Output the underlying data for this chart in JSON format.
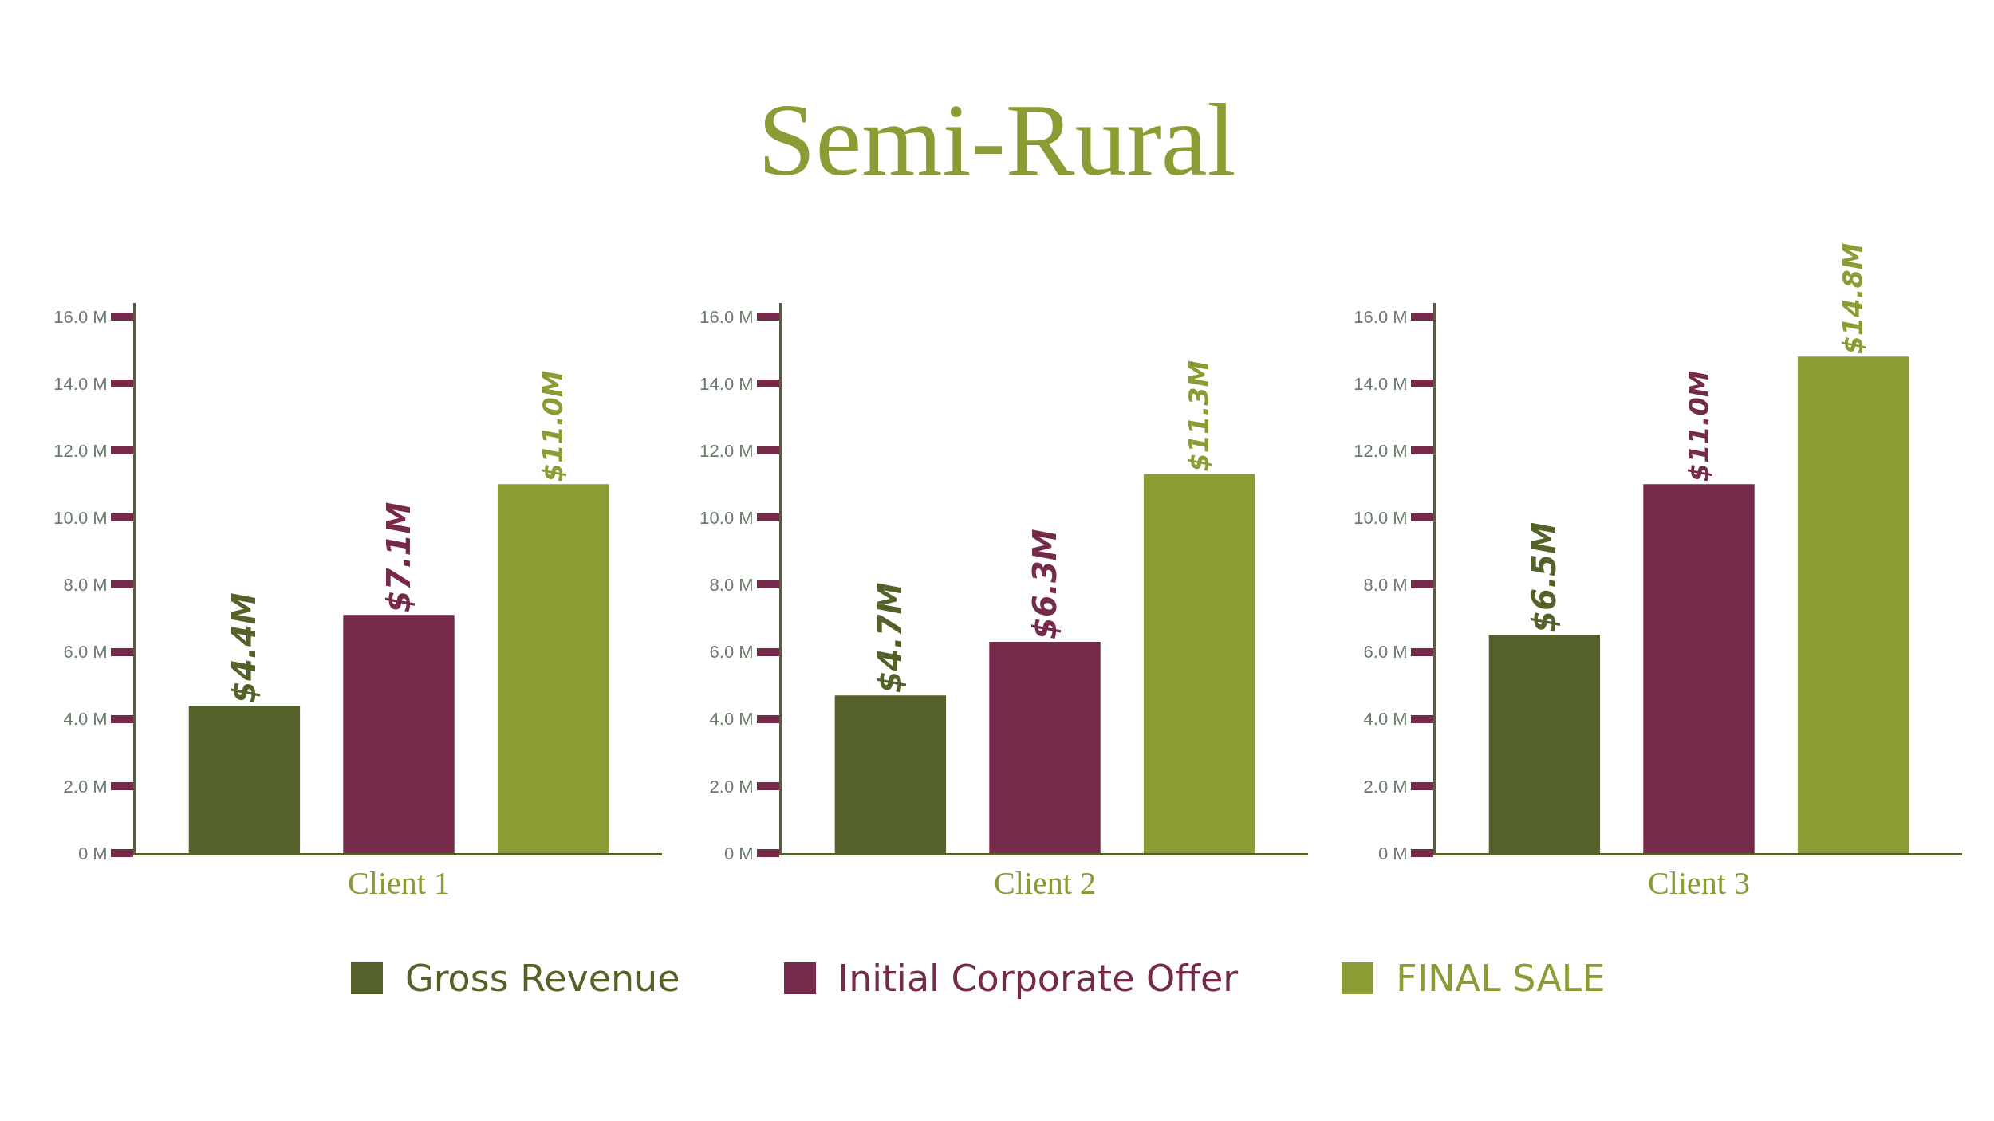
{
  "chart_data": [
    {
      "type": "bar",
      "legend": "bottom",
      "categories": [
        "Client 1"
      ],
      "ylim": [
        0,
        16.4
      ],
      "yticks": [
        {
          "value": 0,
          "label": "0 M"
        },
        {
          "value": 2,
          "label": "2.0 M"
        },
        {
          "value": 4,
          "label": "4.0 M"
        },
        {
          "value": 6,
          "label": "6.0 M"
        },
        {
          "value": 8,
          "label": "8.0 M"
        },
        {
          "value": 10,
          "label": "10.0 M"
        },
        {
          "value": 12,
          "label": "12.0 M"
        },
        {
          "value": 14,
          "label": "14.0 M"
        },
        {
          "value": 16,
          "label": "16.0 M"
        }
      ],
      "series": [
        {
          "name": "Gross Revenue",
          "color": "#54622a",
          "values": [
            4.4
          ],
          "value_labels": [
            "$4.4M"
          ]
        },
        {
          "name": "Initial Corporate Offer",
          "color": "#752a4a",
          "values": [
            7.1
          ],
          "value_labels": [
            "$7.1M"
          ]
        },
        {
          "name": "FINAL SALE",
          "color": "#8a9c33",
          "values": [
            11.0
          ],
          "value_labels": [
            "$11.0M"
          ]
        }
      ]
    },
    {
      "type": "bar",
      "title": "Semi-Rural",
      "categories": [
        "Client 2"
      ],
      "ylim": [
        0,
        16.4
      ],
      "yticks": [
        {
          "value": 0,
          "label": "0 M"
        },
        {
          "value": 2,
          "label": "2.0 M"
        },
        {
          "value": 4,
          "label": "4.0 M"
        },
        {
          "value": 6,
          "label": "6.0 M"
        },
        {
          "value": 8,
          "label": "8.0 M"
        },
        {
          "value": 10,
          "label": "10.0 M"
        },
        {
          "value": 12,
          "label": "12.0 M"
        },
        {
          "value": 14,
          "label": "14.0 M"
        },
        {
          "value": 16,
          "label": "16.0 M"
        }
      ],
      "series": [
        {
          "color": "#54622a",
          "values": [
            4.7
          ],
          "value_labels": [
            "$4.7M"
          ]
        },
        {
          "color": "#752a4a",
          "values": [
            6.3
          ],
          "value_labels": [
            "$6.3M"
          ]
        },
        {
          "color": "#8a9c33",
          "values": [
            11.3
          ],
          "value_labels": [
            "$11.3M"
          ]
        }
      ]
    },
    {
      "type": "bar",
      "categories": [
        "Client 3"
      ],
      "ylim": [
        0,
        16.4
      ],
      "yticks": [
        {
          "value": 0,
          "label": "0 M"
        },
        {
          "value": 2,
          "label": "2.0 M"
        },
        {
          "value": 4,
          "label": "4.0 M"
        },
        {
          "value": 6,
          "label": "6.0 M"
        },
        {
          "value": 8,
          "label": "8.0 M"
        },
        {
          "value": 10,
          "label": "10.0 M"
        },
        {
          "value": 12,
          "label": "12.0 M"
        },
        {
          "value": 14,
          "label": "14.0 M"
        },
        {
          "value": 16,
          "label": "16.0 M"
        }
      ],
      "series": [
        {
          "color": "#54622a",
          "values": [
            6.5
          ],
          "value_labels": [
            "$6.5M"
          ]
        },
        {
          "color": "#752a4a",
          "values": [
            11.0
          ],
          "value_labels": [
            "$11.0M"
          ]
        },
        {
          "color": "#8a9c33",
          "values": [
            14.8
          ],
          "value_labels": [
            "$14.8M"
          ]
        }
      ]
    }
  ]
}
